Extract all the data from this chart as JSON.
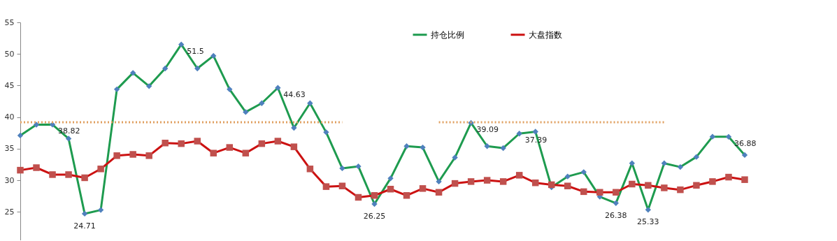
{
  "chart_data": {
    "type": "line",
    "categories": [
      null,
      null,
      null,
      null,
      null,
      null,
      null,
      null,
      null,
      null,
      null,
      null,
      null,
      null,
      null,
      null,
      null,
      null,
      null,
      null,
      null,
      null,
      null,
      null,
      null,
      null,
      null,
      null,
      null,
      null,
      null,
      null,
      null,
      null,
      null,
      null,
      null,
      null,
      null,
      null,
      null,
      null,
      null,
      null,
      null,
      null
    ],
    "series": [
      {
        "name": "持仓比例",
        "color": "#1e9b4f",
        "colors": [
          "#4f81bd",
          "#4f81bd",
          "#4f81bd",
          "#4f81bd",
          "#4f81bd",
          "#4f81bd",
          "#4f81bd",
          "#4f81bd",
          "#4f81bd",
          "#4f81bd",
          "#4f81bd",
          "#4f81bd",
          "#4f81bd",
          "#4f81bd",
          "#4f81bd",
          "#4f81bd",
          "#4f81bd",
          "#4f81bd",
          "#4f81bd",
          "#4f81bd",
          "#4f81bd",
          "#4f81bd",
          "#4f81bd",
          "#4f81bd",
          "#4f81bd",
          "#4f81bd",
          "#4f81bd",
          "#4f81bd",
          "#4f81bd",
          "#4f81bd",
          "#4f81bd",
          "#4f81bd",
          "#4f81bd",
          "#4f81bd",
          "#4f81bd",
          "#4f81bd",
          "#4f81bd",
          "#4f81bd",
          "#4f81bd",
          "#4f81bd",
          "#4f81bd",
          "#4f81bd",
          "#4f81bd",
          "#4f81bd",
          "#4f81bd",
          "#4f81bd"
        ],
        "marker": "diamond",
        "values": [
          37.1,
          38.8,
          38.82,
          36.6,
          24.71,
          25.3,
          44.4,
          47.0,
          44.9,
          47.7,
          51.5,
          47.7,
          49.7,
          44.4,
          40.8,
          42.2,
          44.63,
          38.3,
          42.2,
          37.6,
          31.9,
          32.2,
          26.25,
          30.3,
          35.4,
          35.2,
          29.8,
          33.6,
          39.09,
          35.4,
          35.1,
          37.39,
          37.7,
          28.9,
          30.6,
          31.3,
          27.4,
          26.38,
          32.7,
          25.33,
          32.7,
          32.1,
          33.7,
          36.9,
          36.88,
          34.0
        ],
        "value_labels": [
          null,
          null,
          "38.82",
          null,
          "24.71",
          null,
          null,
          null,
          null,
          null,
          "51.5",
          null,
          null,
          null,
          null,
          null,
          "44.63",
          null,
          null,
          null,
          null,
          null,
          "26.25",
          null,
          null,
          null,
          null,
          null,
          "39.09",
          null,
          null,
          "37.39",
          null,
          null,
          null,
          null,
          null,
          "26.38",
          null,
          "25.33",
          null,
          null,
          null,
          null,
          "36.88",
          null
        ]
      },
      {
        "name": "大盘指数",
        "color": "#cc1111",
        "colors": [
          "#c0504d",
          "#c0504d",
          "#c0504d",
          "#c0504d",
          "#c0504d",
          "#c0504d",
          "#c0504d",
          "#c0504d",
          "#c0504d",
          "#c0504d",
          "#c0504d",
          "#c0504d",
          "#c0504d",
          "#c0504d",
          "#c0504d",
          "#c0504d",
          "#c0504d",
          "#c0504d",
          "#c0504d",
          "#c0504d",
          "#c0504d",
          "#c0504d",
          "#c0504d",
          "#c0504d",
          "#c0504d",
          "#c0504d",
          "#c0504d",
          "#c0504d",
          "#c0504d",
          "#c0504d",
          "#c0504d",
          "#c0504d",
          "#c0504d",
          "#c0504d",
          "#c0504d",
          "#c0504d",
          "#c0504d",
          "#c0504d",
          "#c0504d",
          "#c0504d",
          "#c0504d",
          "#c0504d",
          "#c0504d",
          "#c0504d",
          "#c0504d",
          "#c0504d"
        ],
        "marker": "square",
        "values": [
          31.6,
          32.0,
          30.9,
          30.9,
          30.4,
          31.8,
          33.9,
          34.1,
          33.9,
          35.9,
          35.8,
          36.2,
          34.3,
          35.2,
          34.3,
          35.8,
          36.2,
          35.3,
          31.8,
          29.0,
          29.1,
          27.3,
          27.6,
          28.6,
          27.6,
          28.7,
          28.1,
          29.5,
          29.8,
          30.0,
          29.8,
          30.8,
          29.6,
          29.3,
          29.1,
          28.2,
          28.1,
          28.1,
          29.4,
          29.2,
          28.8,
          28.5,
          29.2,
          29.8,
          30.5,
          30.1
        ]
      },
      {
        "color": "#e0a060",
        "line_style": "dotted",
        "marker": "none",
        "values": [
          39.2,
          39.2,
          39.2,
          39.2,
          39.2,
          39.2,
          39.2,
          39.2,
          39.2,
          39.2,
          39.2,
          39.2,
          39.2,
          39.2,
          39.2,
          39.2,
          39.2,
          39.2,
          39.2,
          39.2,
          39.2,
          null,
          null,
          null,
          null,
          null,
          39.2,
          39.2,
          39.2,
          39.2,
          39.2,
          39.2,
          39.2,
          39.2,
          39.2,
          39.2,
          39.2,
          39.2,
          39.2,
          39.2,
          39.2,
          null,
          null,
          null,
          null,
          null
        ]
      }
    ],
    "ylim": [
      20.5,
      55
    ],
    "yticks": [
      25,
      30,
      35,
      40,
      45,
      50,
      55
    ],
    "tick_labels": "y",
    "grid": false,
    "legend": "top",
    "line_style": "solid"
  }
}
